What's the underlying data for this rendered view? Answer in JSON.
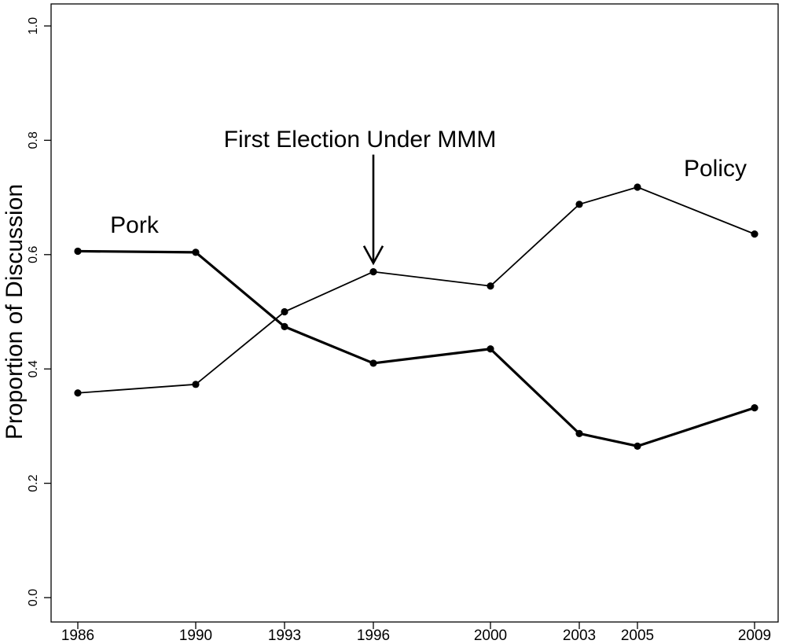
{
  "chart_data": {
    "type": "line",
    "title": "",
    "xlabel": "",
    "ylabel": "Proportion of Discussion",
    "ylim": [
      0,
      1
    ],
    "yticks": [
      "0.0",
      "0.2",
      "0.4",
      "0.6",
      "0.8",
      "1.0"
    ],
    "x": [
      1986,
      1990,
      1993,
      1996,
      2000,
      2003,
      2005,
      2009
    ],
    "series": [
      {
        "name": "Pork",
        "line": "thick",
        "values": [
          0.606,
          0.604,
          0.474,
          0.41,
          0.435,
          0.287,
          0.265,
          0.332
        ]
      },
      {
        "name": "Policy",
        "line": "thin",
        "values": [
          0.358,
          0.373,
          0.5,
          0.57,
          0.545,
          0.688,
          0.718,
          0.636
        ]
      }
    ],
    "annotations": [
      {
        "text": "First Election Under MMM",
        "arrow_x": 1996,
        "arrow_y_from": 0.775,
        "arrow_y_to": 0.585
      }
    ],
    "grid": false,
    "legend": "none (series labeled directly on chart)"
  }
}
